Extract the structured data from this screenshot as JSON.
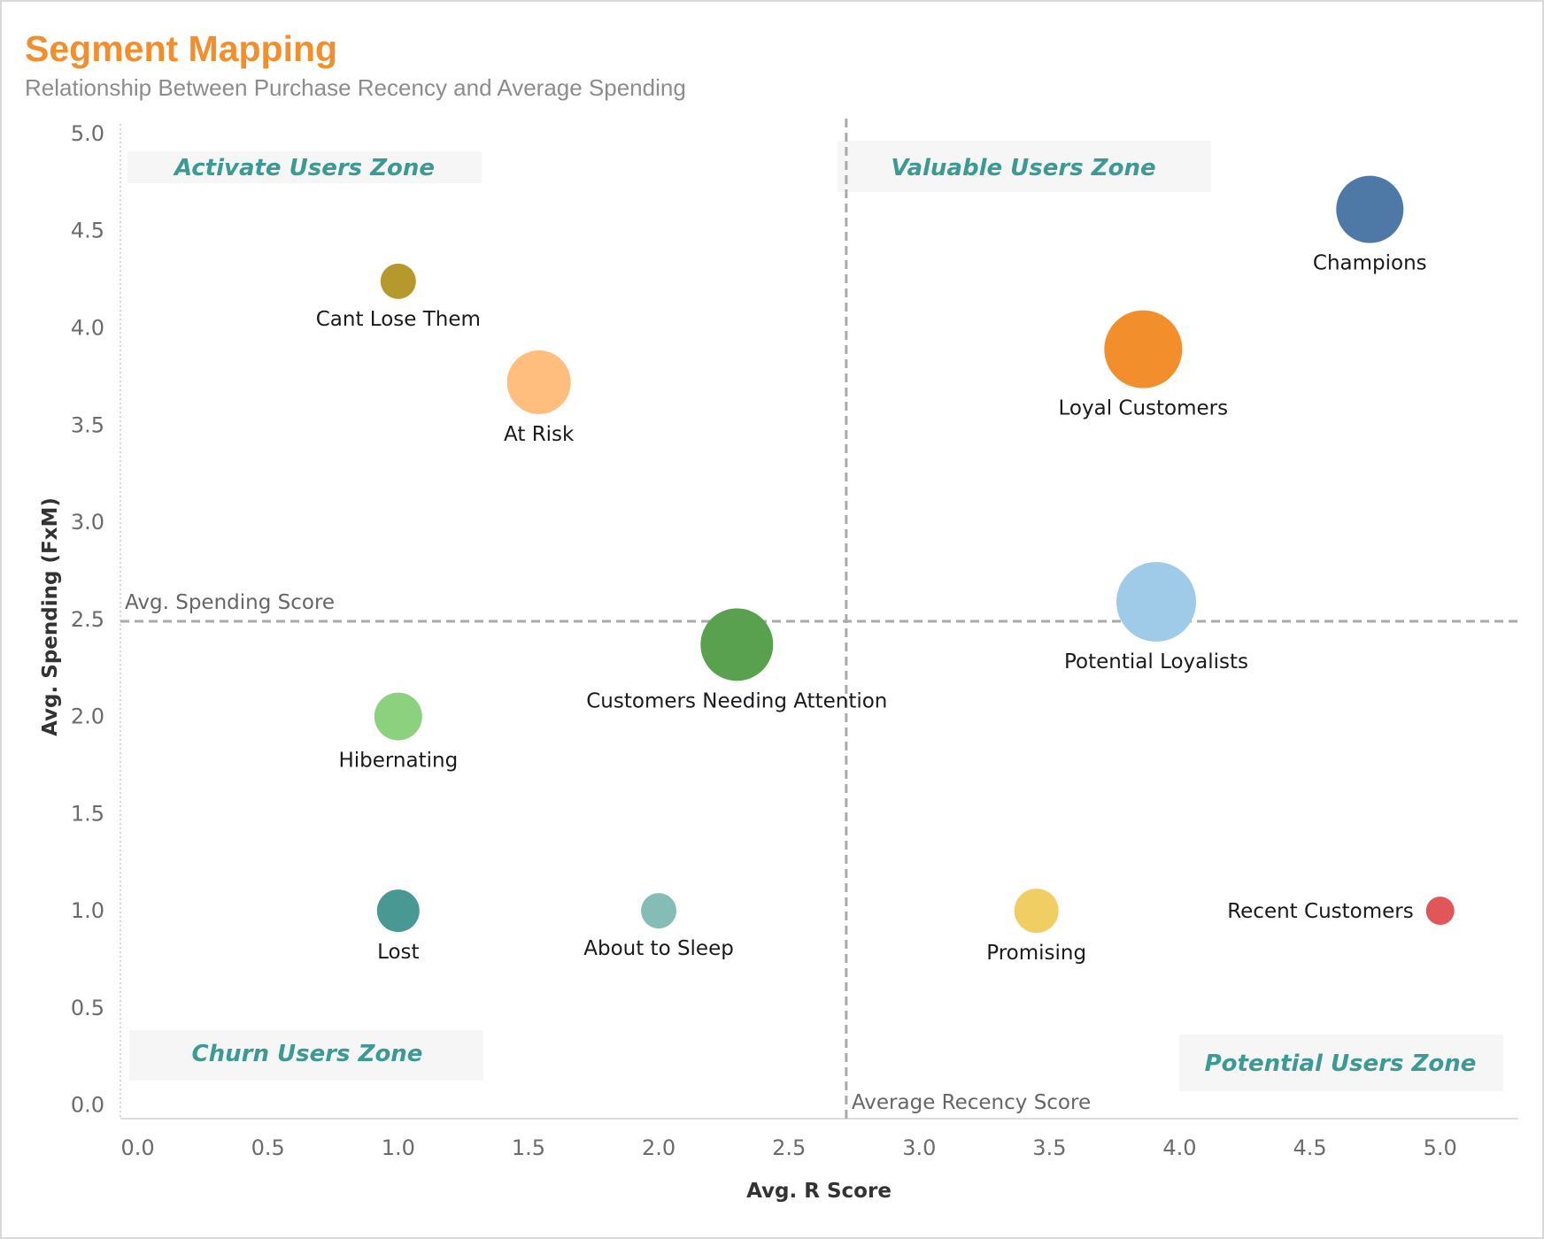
{
  "chart_data": {
    "type": "scatter",
    "title": "Segment Mapping",
    "subtitle": "Relationship Between Purchase Recency and Average Spending",
    "xlabel": "Avg. R Score",
    "ylabel": "Avg. Spending (FxM)",
    "xlim": [
      -0.07,
      5.3
    ],
    "ylim": [
      -0.07,
      5.05
    ],
    "x_ticks": [
      "0.0",
      "0.5",
      "1.0",
      "1.5",
      "2.0",
      "2.5",
      "3.0",
      "3.5",
      "4.0",
      "4.5",
      "5.0"
    ],
    "y_ticks": [
      "0.0",
      "0.5",
      "1.0",
      "1.5",
      "2.0",
      "2.5",
      "3.0",
      "3.5",
      "4.0",
      "4.5",
      "5.0"
    ],
    "reference_lines": {
      "x": {
        "value": 2.72,
        "label": "Average Recency Score"
      },
      "y": {
        "value": 2.49,
        "label": "Avg. Spending Score"
      }
    },
    "zones": [
      {
        "name": "Activate Users Zone",
        "position": "top-left"
      },
      {
        "name": "Valuable Users Zone",
        "position": "top-center-right"
      },
      {
        "name": "Churn Users Zone",
        "position": "bottom-left"
      },
      {
        "name": "Potential Users Zone",
        "position": "bottom-right"
      }
    ],
    "points": [
      {
        "name": "Champions",
        "x": 4.73,
        "y": 4.61,
        "size": 38,
        "color": "#4e79a7",
        "label_pos": "below"
      },
      {
        "name": "Loyal Customers",
        "x": 3.86,
        "y": 3.89,
        "size": 44,
        "color": "#f28e2b",
        "label_pos": "below"
      },
      {
        "name": "Potential Loyalists",
        "x": 3.91,
        "y": 2.59,
        "size": 45,
        "color": "#a0cbe8",
        "label_pos": "below"
      },
      {
        "name": "Cant Lose Them",
        "x": 1.0,
        "y": 4.24,
        "size": 20,
        "color": "#b6992d",
        "label_pos": "below"
      },
      {
        "name": "At Risk",
        "x": 1.54,
        "y": 3.72,
        "size": 36,
        "color": "#ffbe7d",
        "label_pos": "below"
      },
      {
        "name": "Customers Needing Attention",
        "x": 2.3,
        "y": 2.37,
        "size": 41,
        "color": "#59a14f",
        "label_pos": "below"
      },
      {
        "name": "Hibernating",
        "x": 1.0,
        "y": 2.0,
        "size": 27,
        "color": "#8cd17d",
        "label_pos": "below"
      },
      {
        "name": "Lost",
        "x": 1.0,
        "y": 1.0,
        "size": 24,
        "color": "#499894",
        "label_pos": "below"
      },
      {
        "name": "About to Sleep",
        "x": 2.0,
        "y": 1.0,
        "size": 20,
        "color": "#86bcb6",
        "label_pos": "below"
      },
      {
        "name": "Promising",
        "x": 3.45,
        "y": 1.0,
        "size": 25,
        "color": "#f1ce63",
        "label_pos": "below"
      },
      {
        "name": "Recent Customers",
        "x": 5.0,
        "y": 1.0,
        "size": 16,
        "color": "#e15759",
        "label_pos": "left"
      }
    ]
  }
}
